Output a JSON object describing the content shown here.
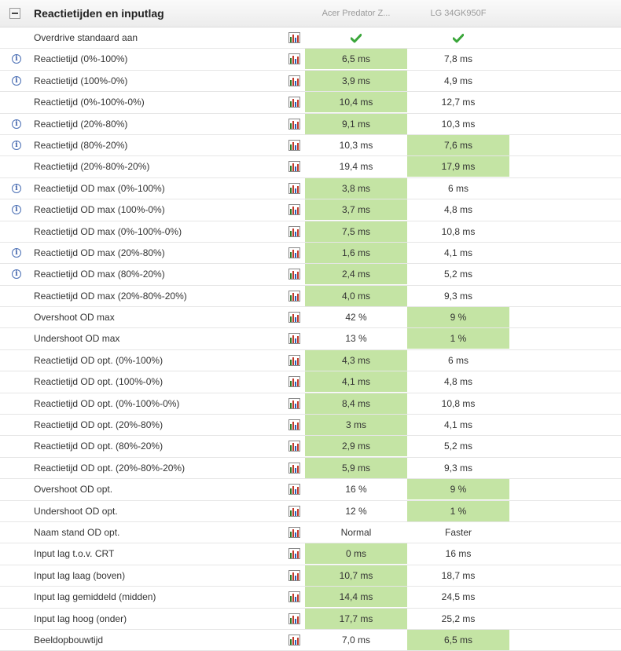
{
  "section": {
    "title": "Reactietijden en inputlag",
    "columns": [
      "Acer Predator Z...",
      "LG 34GK950F"
    ]
  },
  "colors": {
    "winner": "#c4e4a4",
    "check": "#3aa63a"
  },
  "rows": [
    {
      "label": "Overdrive standaard aan",
      "info": false,
      "a": "",
      "b": "",
      "a_check": true,
      "b_check": true,
      "win": ""
    },
    {
      "label": "Reactietijd (0%-100%)",
      "info": true,
      "a": "6,5 ms",
      "b": "7,8 ms",
      "win": "a"
    },
    {
      "label": "Reactietijd (100%-0%)",
      "info": true,
      "a": "3,9 ms",
      "b": "4,9 ms",
      "win": "a"
    },
    {
      "label": "Reactietijd (0%-100%-0%)",
      "info": false,
      "a": "10,4 ms",
      "b": "12,7 ms",
      "win": "a"
    },
    {
      "label": "Reactietijd (20%-80%)",
      "info": true,
      "a": "9,1 ms",
      "b": "10,3 ms",
      "win": "a"
    },
    {
      "label": "Reactietijd (80%-20%)",
      "info": true,
      "a": "10,3 ms",
      "b": "7,6 ms",
      "win": "b"
    },
    {
      "label": "Reactietijd (20%-80%-20%)",
      "info": false,
      "a": "19,4 ms",
      "b": "17,9 ms",
      "win": "b"
    },
    {
      "label": "Reactietijd OD max (0%-100%)",
      "info": true,
      "a": "3,8 ms",
      "b": "6 ms",
      "win": "a"
    },
    {
      "label": "Reactietijd OD max (100%-0%)",
      "info": true,
      "a": "3,7 ms",
      "b": "4,8 ms",
      "win": "a"
    },
    {
      "label": "Reactietijd OD max (0%-100%-0%)",
      "info": false,
      "a": "7,5 ms",
      "b": "10,8 ms",
      "win": "a"
    },
    {
      "label": "Reactietijd OD max (20%-80%)",
      "info": true,
      "a": "1,6 ms",
      "b": "4,1 ms",
      "win": "a"
    },
    {
      "label": "Reactietijd OD max (80%-20%)",
      "info": true,
      "a": "2,4 ms",
      "b": "5,2 ms",
      "win": "a"
    },
    {
      "label": "Reactietijd OD max (20%-80%-20%)",
      "info": false,
      "a": "4,0 ms",
      "b": "9,3 ms",
      "win": "a"
    },
    {
      "label": "Overshoot OD max",
      "info": false,
      "a": "42 %",
      "b": "9 %",
      "win": "b"
    },
    {
      "label": "Undershoot OD max",
      "info": false,
      "a": "13 %",
      "b": "1 %",
      "win": "b"
    },
    {
      "label": "Reactietijd OD opt. (0%-100%)",
      "info": false,
      "a": "4,3 ms",
      "b": "6 ms",
      "win": "a"
    },
    {
      "label": "Reactietijd OD opt. (100%-0%)",
      "info": false,
      "a": "4,1 ms",
      "b": "4,8 ms",
      "win": "a"
    },
    {
      "label": "Reactietijd OD opt. (0%-100%-0%)",
      "info": false,
      "a": "8,4 ms",
      "b": "10,8 ms",
      "win": "a"
    },
    {
      "label": "Reactietijd OD opt. (20%-80%)",
      "info": false,
      "a": "3 ms",
      "b": "4,1 ms",
      "win": "a"
    },
    {
      "label": "Reactietijd OD opt. (80%-20%)",
      "info": false,
      "a": "2,9 ms",
      "b": "5,2 ms",
      "win": "a"
    },
    {
      "label": "Reactietijd OD opt. (20%-80%-20%)",
      "info": false,
      "a": "5,9 ms",
      "b": "9,3 ms",
      "win": "a"
    },
    {
      "label": "Overshoot OD opt.",
      "info": false,
      "a": "16 %",
      "b": "9 %",
      "win": "b"
    },
    {
      "label": "Undershoot OD opt.",
      "info": false,
      "a": "12 %",
      "b": "1 %",
      "win": "b"
    },
    {
      "label": "Naam stand OD opt.",
      "info": false,
      "a": "Normal",
      "b": "Faster",
      "win": ""
    },
    {
      "label": "Input lag t.o.v. CRT",
      "info": false,
      "a": "0 ms",
      "b": "16 ms",
      "win": "a"
    },
    {
      "label": "Input lag laag (boven)",
      "info": false,
      "a": "10,7 ms",
      "b": "18,7 ms",
      "win": "a"
    },
    {
      "label": "Input lag gemiddeld (midden)",
      "info": false,
      "a": "14,4 ms",
      "b": "24,5 ms",
      "win": "a"
    },
    {
      "label": "Input lag hoog (onder)",
      "info": false,
      "a": "17,7 ms",
      "b": "25,2 ms",
      "win": "a"
    },
    {
      "label": "Beeldopbouwtijd",
      "info": false,
      "a": "7,0 ms",
      "b": "6,5 ms",
      "win": "b"
    }
  ]
}
